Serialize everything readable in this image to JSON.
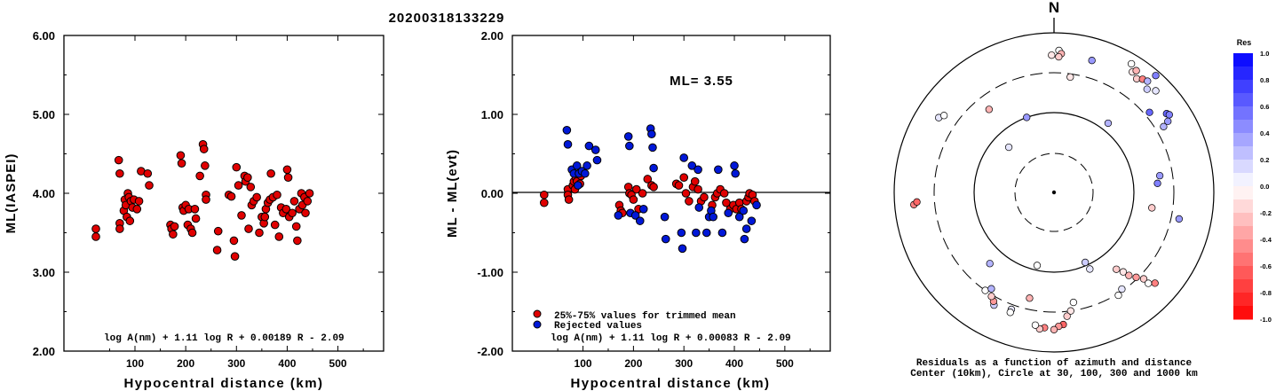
{
  "title": "20200318133229",
  "chart_data": [
    {
      "type": "scatter",
      "ylabel": "ML(IASPEI)",
      "xlabel": "Hypocentral distance (km)",
      "xlim": [
        -40,
        590
      ],
      "ylim": [
        2.0,
        6.0
      ],
      "x_ticks": [
        "100",
        "200",
        "300",
        "400",
        "500"
      ],
      "y_ticks": [
        "2.00",
        "3.00",
        "4.00",
        "5.00",
        "6.00"
      ],
      "formula": "log A(nm) + 1.11 log R + 0.00189 R - 2.09",
      "series": [
        {
          "color": "#e00000",
          "points": [
            [
              23,
              3.55
            ],
            [
              23,
              3.45
            ],
            [
              68,
              4.42
            ],
            [
              70,
              4.25
            ],
            [
              70,
              3.62
            ],
            [
              70,
              3.55
            ],
            [
              78,
              3.78
            ],
            [
              80,
              3.92
            ],
            [
              82,
              3.85
            ],
            [
              84,
              3.7
            ],
            [
              86,
              4.0
            ],
            [
              88,
              3.95
            ],
            [
              90,
              3.65
            ],
            [
              92,
              3.9
            ],
            [
              95,
              3.82
            ],
            [
              98,
              3.92
            ],
            [
              104,
              3.8
            ],
            [
              108,
              3.9
            ],
            [
              112,
              4.28
            ],
            [
              125,
              4.25
            ],
            [
              128,
              4.1
            ],
            [
              170,
              3.6
            ],
            [
              172,
              3.55
            ],
            [
              175,
              3.48
            ],
            [
              178,
              3.58
            ],
            [
              190,
              4.48
            ],
            [
              192,
              4.38
            ],
            [
              194,
              3.82
            ],
            [
              196,
              3.78
            ],
            [
              200,
              3.85
            ],
            [
              204,
              3.6
            ],
            [
              206,
              3.8
            ],
            [
              210,
              3.55
            ],
            [
              213,
              3.5
            ],
            [
              218,
              3.8
            ],
            [
              220,
              3.68
            ],
            [
              228,
              4.22
            ],
            [
              234,
              4.62
            ],
            [
              236,
              4.56
            ],
            [
              238,
              4.35
            ],
            [
              240,
              3.98
            ],
            [
              240,
              3.92
            ],
            [
              262,
              3.28
            ],
            [
              264,
              3.52
            ],
            [
              285,
              3.98
            ],
            [
              290,
              3.96
            ],
            [
              295,
              3.4
            ],
            [
              297,
              3.2
            ],
            [
              300,
              4.33
            ],
            [
              304,
              4.1
            ],
            [
              310,
              3.72
            ],
            [
              316,
              4.22
            ],
            [
              318,
              4.15
            ],
            [
              322,
              4.2
            ],
            [
              324,
              3.55
            ],
            [
              328,
              4.08
            ],
            [
              330,
              3.85
            ],
            [
              334,
              3.9
            ],
            [
              340,
              3.95
            ],
            [
              345,
              3.5
            ],
            [
              350,
              3.7
            ],
            [
              354,
              3.62
            ],
            [
              356,
              3.7
            ],
            [
              358,
              3.8
            ],
            [
              362,
              3.88
            ],
            [
              366,
              3.92
            ],
            [
              368,
              4.25
            ],
            [
              372,
              3.95
            ],
            [
              376,
              3.6
            ],
            [
              380,
              3.98
            ],
            [
              384,
              3.45
            ],
            [
              388,
              3.82
            ],
            [
              392,
              3.75
            ],
            [
              398,
              3.8
            ],
            [
              400,
              4.3
            ],
            [
              402,
              4.2
            ],
            [
              404,
              3.7
            ],
            [
              410,
              3.75
            ],
            [
              414,
              3.9
            ],
            [
              418,
              3.58
            ],
            [
              420,
              3.4
            ],
            [
              424,
              3.8
            ],
            [
              428,
              4.0
            ],
            [
              430,
              3.85
            ],
            [
              434,
              3.95
            ],
            [
              436,
              3.75
            ],
            [
              440,
              3.9
            ],
            [
              444,
              4.0
            ]
          ]
        }
      ]
    },
    {
      "type": "scatter",
      "ylabel": "ML - ML(evt)",
      "xlabel": "Hypocentral distance (km)",
      "xlim": [
        -40,
        590
      ],
      "ylim": [
        -2.0,
        2.0
      ],
      "x_ticks": [
        "100",
        "200",
        "300",
        "400",
        "500"
      ],
      "y_ticks": [
        "-2.00",
        "-1.00",
        "0.00",
        "1.00",
        "2.00"
      ],
      "annotation": "ML= 3.55",
      "formula": "log A(nm) + 1.11 log R + 0.00083 R - 2.09",
      "legend": [
        {
          "label": "25%-75% values for trimmed mean",
          "color": "#e00000"
        },
        {
          "label": "Rejected values",
          "color": "#0018d8"
        }
      ],
      "series": [
        {
          "name": "25%-75% values for trimmed mean",
          "color": "#e00000",
          "points": [
            [
              23,
              -0.02
            ],
            [
              23,
              -0.12
            ],
            [
              70,
              0.05
            ],
            [
              70,
              -0.02
            ],
            [
              72,
              -0.08
            ],
            [
              80,
              0.1
            ],
            [
              82,
              0.15
            ],
            [
              84,
              0.05
            ],
            [
              86,
              0.2
            ],
            [
              88,
              0.15
            ],
            [
              94,
              0.12
            ],
            [
              96,
              0.22
            ],
            [
              172,
              -0.15
            ],
            [
              175,
              -0.22
            ],
            [
              178,
              -0.25
            ],
            [
              190,
              0.08
            ],
            [
              192,
              0.0
            ],
            [
              196,
              -0.02
            ],
            [
              200,
              -0.08
            ],
            [
              206,
              0.05
            ],
            [
              210,
              -0.2
            ],
            [
              218,
              0.0
            ],
            [
              228,
              0.18
            ],
            [
              236,
              0.1
            ],
            [
              240,
              0.08
            ],
            [
              285,
              0.12
            ],
            [
              290,
              0.1
            ],
            [
              300,
              0.2
            ],
            [
              304,
              0.0
            ],
            [
              310,
              -0.1
            ],
            [
              318,
              0.08
            ],
            [
              322,
              0.15
            ],
            [
              328,
              0.05
            ],
            [
              334,
              -0.1
            ],
            [
              340,
              -0.05
            ],
            [
              356,
              -0.15
            ],
            [
              362,
              -0.05
            ],
            [
              366,
              0.0
            ],
            [
              372,
              0.05
            ],
            [
              380,
              0.0
            ],
            [
              384,
              -0.12
            ],
            [
              392,
              -0.2
            ],
            [
              398,
              -0.15
            ],
            [
              404,
              -0.2
            ],
            [
              410,
              -0.12
            ],
            [
              414,
              -0.2
            ],
            [
              424,
              -0.1
            ],
            [
              428,
              -0.05
            ],
            [
              430,
              0.0
            ],
            [
              436,
              -0.02
            ],
            [
              440,
              -0.1
            ]
          ]
        },
        {
          "name": "Rejected values",
          "color": "#0018d8",
          "points": [
            [
              68,
              0.8
            ],
            [
              70,
              0.62
            ],
            [
              78,
              0.3
            ],
            [
              82,
              0.25
            ],
            [
              88,
              0.35
            ],
            [
              90,
              0.1
            ],
            [
              92,
              0.25
            ],
            [
              98,
              0.28
            ],
            [
              104,
              0.25
            ],
            [
              108,
              0.35
            ],
            [
              112,
              0.6
            ],
            [
              125,
              0.55
            ],
            [
              128,
              0.42
            ],
            [
              170,
              -0.28
            ],
            [
              190,
              0.72
            ],
            [
              192,
              0.6
            ],
            [
              194,
              -0.25
            ],
            [
              204,
              -0.28
            ],
            [
              213,
              -0.35
            ],
            [
              220,
              -0.2
            ],
            [
              234,
              0.82
            ],
            [
              236,
              0.75
            ],
            [
              238,
              0.58
            ],
            [
              240,
              0.32
            ],
            [
              262,
              -0.3
            ],
            [
              264,
              -0.58
            ],
            [
              295,
              -0.5
            ],
            [
              297,
              -0.7
            ],
            [
              300,
              0.45
            ],
            [
              316,
              0.35
            ],
            [
              324,
              -0.5
            ],
            [
              328,
              0.3
            ],
            [
              330,
              -0.18
            ],
            [
              345,
              -0.5
            ],
            [
              350,
              -0.3
            ],
            [
              354,
              -0.22
            ],
            [
              358,
              -0.3
            ],
            [
              368,
              0.3
            ],
            [
              376,
              -0.5
            ],
            [
              388,
              -0.25
            ],
            [
              400,
              0.35
            ],
            [
              402,
              0.25
            ],
            [
              410,
              -0.3
            ],
            [
              418,
              -0.22
            ],
            [
              420,
              -0.58
            ],
            [
              424,
              -0.45
            ],
            [
              434,
              -0.35
            ],
            [
              444,
              -0.15
            ]
          ]
        }
      ]
    },
    {
      "type": "scatter",
      "kind": "polar residual map",
      "north_label": "N",
      "caption_line1": "Residuals as a function of azimuth and distance",
      "caption_line2": "Center (10km), Circle at 30, 100, 300 and 1000 km",
      "colorbar_title": "Res",
      "colorbar_ticks": [
        "1.0",
        "0.8",
        "0.6",
        "0.4",
        "0.2",
        "0.0",
        "-0.2",
        "-0.4",
        "-0.6",
        "-0.8",
        "-1.0"
      ],
      "points": [
        [
          33,
          90,
          -0.1
        ],
        [
          34,
          92,
          -0.3
        ],
        [
          36,
          88,
          -0.2
        ],
        [
          31,
          94,
          0.0
        ],
        [
          38,
          90,
          -0.5
        ],
        [
          40,
          91,
          0.3
        ],
        [
          45,
          90,
          0.1
        ],
        [
          42,
          87,
          0.2
        ],
        [
          41,
          97,
          0.5
        ],
        [
          16,
          86,
          0.4
        ],
        [
          50,
          78,
          0.6
        ],
        [
          55,
          86,
          0.6
        ],
        [
          56,
          87,
          0.5
        ],
        [
          58,
          84,
          0.4
        ],
        [
          59,
          80,
          0.3
        ],
        [
          38,
          55,
          0.3
        ],
        [
          81,
          67,
          0.4
        ],
        [
          85,
          65,
          0.5
        ],
        [
          99,
          62,
          -0.2
        ],
        [
          102,
          80,
          0.4
        ],
        [
          155,
          53,
          0.1
        ],
        [
          141,
          62,
          -0.2
        ],
        [
          139,
          66,
          -0.1
        ],
        [
          138,
          70,
          -0.3
        ],
        [
          136,
          74,
          -0.4
        ],
        [
          134,
          78,
          -0.2
        ],
        [
          134,
          82,
          0.0
        ],
        [
          132,
          85,
          -0.5
        ],
        [
          145,
          74,
          0.1
        ],
        [
          148,
          76,
          0.0
        ],
        [
          170,
          70,
          0.0
        ],
        [
          172,
          75,
          -0.1
        ],
        [
          174,
          78,
          -0.2
        ],
        [
          176,
          83,
          -0.6
        ],
        [
          178,
          84,
          -0.4
        ],
        [
          180,
          86,
          -0.3
        ],
        [
          184,
          85,
          -0.5
        ],
        [
          186,
          86,
          -0.2
        ],
        [
          188,
          84,
          0.0
        ],
        [
          193,
          68,
          -0.3
        ],
        [
          200,
          78,
          0.1
        ],
        [
          200,
          80,
          0.0
        ],
        [
          208,
          80,
          0.2
        ],
        [
          209,
          78,
          -0.4
        ],
        [
          211,
          76,
          -0.2
        ],
        [
          215,
          75,
          0.0
        ],
        [
          213,
          72,
          0.3
        ],
        [
          222,
          60,
          0.3
        ],
        [
          156,
          48,
          0.2
        ],
        [
          193,
          47,
          0.0
        ],
        [
          265,
          88,
          -0.5
        ],
        [
          266,
          86,
          -0.6
        ],
        [
          303,
          86,
          0.1
        ],
        [
          305,
          84,
          0.0
        ],
        [
          322,
          66,
          -0.3
        ],
        [
          315,
          40,
          0.1
        ],
        [
          340,
          50,
          0.4
        ],
        [
          359,
          86,
          -0.1
        ],
        [
          2,
          89,
          0.0
        ],
        [
          3,
          87,
          -0.3
        ],
        [
          2,
          85,
          -0.2
        ],
        [
          8,
          73,
          -0.1
        ]
      ]
    }
  ]
}
